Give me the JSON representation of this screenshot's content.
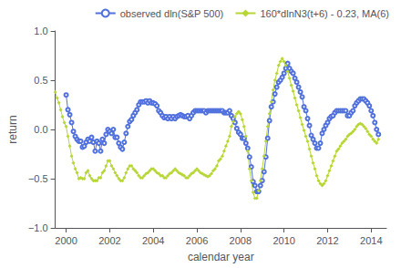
{
  "chart_data": {
    "type": "line",
    "title": "",
    "xlabel": "calendar year",
    "ylabel": "return",
    "xlim": [
      1999.5,
      2014.7
    ],
    "ylim": [
      -1,
      1
    ],
    "xticks": [
      2000,
      2002,
      2004,
      2006,
      2008,
      2010,
      2012,
      2014
    ],
    "yticks": [
      {
        "value": -1,
        "label": "−1.0"
      },
      {
        "value": -0.5,
        "label": "−0.5"
      },
      {
        "value": 0,
        "label": "0.0"
      },
      {
        "value": 0.5,
        "label": "0.5"
      },
      {
        "value": 1,
        "label": "1.0"
      }
    ],
    "grid": false,
    "legend": "upper right",
    "series": [
      {
        "name": "observed dln(S&P 500)",
        "marker": "open circle",
        "x": [
          2000.0,
          2000.083,
          2000.167,
          2000.25,
          2000.333,
          2000.417,
          2000.5,
          2000.583,
          2000.667,
          2000.75,
          2000.833,
          2000.917,
          2001.0,
          2001.083,
          2001.167,
          2001.25,
          2001.333,
          2001.417,
          2001.5,
          2001.583,
          2001.667,
          2001.75,
          2001.833,
          2001.917,
          2002.0,
          2002.083,
          2002.167,
          2002.25,
          2002.333,
          2002.417,
          2002.5,
          2002.583,
          2002.667,
          2002.75,
          2002.833,
          2002.917,
          2003.0,
          2003.083,
          2003.167,
          2003.25,
          2003.333,
          2003.417,
          2003.5,
          2003.583,
          2003.667,
          2003.75,
          2003.833,
          2003.917,
          2004.0,
          2004.083,
          2004.167,
          2004.25,
          2004.333,
          2004.417,
          2004.5,
          2004.583,
          2004.667,
          2004.75,
          2004.833,
          2004.917,
          2005.0,
          2005.083,
          2005.167,
          2005.25,
          2005.333,
          2005.417,
          2005.5,
          2005.583,
          2005.667,
          2005.75,
          2005.833,
          2005.917,
          2006.0,
          2006.083,
          2006.167,
          2006.25,
          2006.333,
          2006.417,
          2006.5,
          2006.583,
          2006.667,
          2006.75,
          2006.833,
          2006.917,
          2007.0,
          2007.083,
          2007.167,
          2007.25,
          2007.333,
          2007.417,
          2007.5,
          2007.583,
          2007.667,
          2007.75,
          2007.833,
          2007.917,
          2008.0,
          2008.083,
          2008.167,
          2008.25,
          2008.333,
          2008.417,
          2008.5,
          2008.583,
          2008.667,
          2008.75,
          2008.833,
          2008.917,
          2009.0,
          2009.083,
          2009.167,
          2009.25,
          2009.333,
          2009.417,
          2009.5,
          2009.583,
          2009.667,
          2009.75,
          2009.833,
          2009.917,
          2010.0,
          2010.083,
          2010.167,
          2010.25,
          2010.333,
          2010.417,
          2010.5,
          2010.583,
          2010.667,
          2010.75,
          2010.833,
          2010.917,
          2011.0,
          2011.083,
          2011.167,
          2011.25,
          2011.333,
          2011.417,
          2011.5,
          2011.583,
          2011.667,
          2011.75,
          2011.833,
          2011.917,
          2012.0,
          2012.083,
          2012.167,
          2012.25,
          2012.333,
          2012.417,
          2012.5,
          2012.583,
          2012.667,
          2012.75,
          2012.833,
          2012.917,
          2013.0,
          2013.083,
          2013.167,
          2013.25,
          2013.333,
          2013.417,
          2013.5,
          2013.583,
          2013.667,
          2013.75,
          2013.833,
          2013.917,
          2014.0,
          2014.083,
          2014.167,
          2014.25,
          2014.333
        ],
        "values": [
          0.35,
          0.2,
          0.15,
          0.07,
          -0.02,
          -0.07,
          -0.1,
          -0.12,
          -0.12,
          -0.18,
          -0.17,
          -0.13,
          -0.1,
          -0.12,
          -0.08,
          -0.13,
          -0.22,
          -0.12,
          -0.14,
          -0.22,
          -0.1,
          -0.14,
          -0.05,
          0.0,
          -0.02,
          -0.04,
          0.0,
          -0.08,
          -0.08,
          -0.14,
          -0.18,
          -0.2,
          -0.13,
          -0.04,
          0.03,
          0.08,
          0.1,
          0.14,
          0.17,
          0.2,
          0.25,
          0.28,
          0.28,
          0.28,
          0.29,
          0.27,
          0.29,
          0.27,
          0.27,
          0.26,
          0.24,
          0.19,
          0.17,
          0.14,
          0.12,
          0.13,
          0.11,
          0.13,
          0.11,
          0.13,
          0.11,
          0.13,
          0.14,
          0.15,
          0.14,
          0.13,
          0.13,
          0.14,
          0.11,
          0.14,
          0.17,
          0.19,
          0.19,
          0.19,
          0.19,
          0.19,
          0.19,
          0.17,
          0.19,
          0.19,
          0.19,
          0.19,
          0.19,
          0.19,
          0.19,
          0.19,
          0.19,
          0.17,
          0.17,
          0.17,
          0.19,
          0.14,
          0.11,
          0.07,
          0.01,
          -0.03,
          -0.05,
          -0.09,
          -0.09,
          -0.14,
          -0.19,
          -0.28,
          -0.38,
          -0.53,
          -0.57,
          -0.63,
          -0.63,
          -0.57,
          -0.52,
          -0.43,
          -0.28,
          -0.09,
          0.09,
          0.23,
          0.28,
          0.36,
          0.43,
          0.48,
          0.5,
          0.53,
          0.57,
          0.62,
          0.67,
          0.62,
          0.59,
          0.57,
          0.52,
          0.48,
          0.43,
          0.38,
          0.33,
          0.23,
          0.19,
          0.11,
          0.04,
          -0.06,
          -0.1,
          -0.14,
          -0.19,
          -0.19,
          -0.14,
          -0.04,
          0.0,
          0.04,
          0.07,
          0.11,
          0.13,
          0.14,
          0.17,
          0.19,
          0.19,
          0.19,
          0.19,
          0.19,
          0.19,
          0.14,
          0.14,
          0.17,
          0.19,
          0.24,
          0.27,
          0.29,
          0.31,
          0.31,
          0.31,
          0.29,
          0.27,
          0.24,
          0.19,
          0.14,
          0.07,
          0.0,
          -0.05
        ]
      },
      {
        "name": "160*dlnN3(t+6) - 0.23, MA(6)",
        "marker": "diamond",
        "x": [
          1999.5,
          1999.583,
          1999.667,
          1999.75,
          1999.833,
          1999.917,
          2000.0,
          2000.083,
          2000.167,
          2000.25,
          2000.333,
          2000.417,
          2000.5,
          2000.583,
          2000.667,
          2000.75,
          2000.833,
          2000.917,
          2001.0,
          2001.083,
          2001.167,
          2001.25,
          2001.333,
          2001.417,
          2001.5,
          2001.583,
          2001.667,
          2001.75,
          2001.833,
          2001.917,
          2002.0,
          2002.083,
          2002.167,
          2002.25,
          2002.333,
          2002.417,
          2002.5,
          2002.583,
          2002.667,
          2002.75,
          2002.833,
          2002.917,
          2003.0,
          2003.083,
          2003.167,
          2003.25,
          2003.333,
          2003.417,
          2003.5,
          2003.583,
          2003.667,
          2003.75,
          2003.833,
          2003.917,
          2004.0,
          2004.083,
          2004.167,
          2004.25,
          2004.333,
          2004.417,
          2004.5,
          2004.583,
          2004.667,
          2004.75,
          2004.833,
          2004.917,
          2005.0,
          2005.083,
          2005.167,
          2005.25,
          2005.333,
          2005.417,
          2005.5,
          2005.583,
          2005.667,
          2005.75,
          2005.833,
          2005.917,
          2006.0,
          2006.083,
          2006.167,
          2006.25,
          2006.333,
          2006.417,
          2006.5,
          2006.583,
          2006.667,
          2006.75,
          2006.833,
          2006.917,
          2007.0,
          2007.083,
          2007.167,
          2007.25,
          2007.333,
          2007.417,
          2007.5,
          2007.583,
          2007.667,
          2007.75,
          2007.833,
          2007.917,
          2008.0,
          2008.083,
          2008.167,
          2008.25,
          2008.333,
          2008.417,
          2008.5,
          2008.583,
          2008.667,
          2008.75,
          2008.833,
          2008.917,
          2009.0,
          2009.083,
          2009.167,
          2009.25,
          2009.333,
          2009.417,
          2009.5,
          2009.583,
          2009.667,
          2009.75,
          2009.833,
          2009.917,
          2010.0,
          2010.083,
          2010.167,
          2010.25,
          2010.333,
          2010.417,
          2010.5,
          2010.583,
          2010.667,
          2010.75,
          2010.833,
          2010.917,
          2011.0,
          2011.083,
          2011.167,
          2011.25,
          2011.333,
          2011.417,
          2011.5,
          2011.583,
          2011.667,
          2011.75,
          2011.833,
          2011.917,
          2012.0,
          2012.083,
          2012.167,
          2012.25,
          2012.333,
          2012.417,
          2012.5,
          2012.583,
          2012.667,
          2012.75,
          2012.833,
          2012.917,
          2013.0,
          2013.083,
          2013.167,
          2013.25,
          2013.333,
          2013.417,
          2013.5,
          2013.583,
          2013.667,
          2013.75,
          2013.833,
          2013.917,
          2014.0,
          2014.083,
          2014.167,
          2014.25,
          2014.333
        ],
        "values": [
          0.38,
          0.32,
          0.27,
          0.2,
          0.13,
          0.07,
          0.03,
          -0.07,
          -0.17,
          -0.27,
          -0.34,
          -0.4,
          -0.44,
          -0.5,
          -0.49,
          -0.5,
          -0.5,
          -0.44,
          -0.42,
          -0.47,
          -0.5,
          -0.52,
          -0.52,
          -0.52,
          -0.49,
          -0.49,
          -0.44,
          -0.42,
          -0.37,
          -0.32,
          -0.32,
          -0.37,
          -0.4,
          -0.44,
          -0.47,
          -0.5,
          -0.52,
          -0.52,
          -0.49,
          -0.44,
          -0.4,
          -0.37,
          -0.37,
          -0.4,
          -0.42,
          -0.44,
          -0.47,
          -0.49,
          -0.49,
          -0.47,
          -0.45,
          -0.44,
          -0.42,
          -0.4,
          -0.4,
          -0.42,
          -0.44,
          -0.45,
          -0.47,
          -0.47,
          -0.49,
          -0.49,
          -0.47,
          -0.45,
          -0.44,
          -0.42,
          -0.4,
          -0.42,
          -0.44,
          -0.45,
          -0.46,
          -0.47,
          -0.49,
          -0.49,
          -0.47,
          -0.45,
          -0.44,
          -0.42,
          -0.4,
          -0.42,
          -0.44,
          -0.45,
          -0.46,
          -0.47,
          -0.48,
          -0.47,
          -0.45,
          -0.42,
          -0.4,
          -0.37,
          -0.32,
          -0.3,
          -0.27,
          -0.22,
          -0.17,
          -0.12,
          -0.07,
          0.03,
          0.08,
          0.13,
          0.16,
          0.18,
          0.16,
          0.1,
          0.03,
          -0.07,
          -0.22,
          -0.4,
          -0.52,
          -0.64,
          -0.7,
          -0.7,
          -0.62,
          -0.52,
          -0.4,
          -0.27,
          -0.12,
          0.03,
          0.16,
          0.28,
          0.4,
          0.5,
          0.57,
          0.65,
          0.69,
          0.72,
          0.69,
          0.65,
          0.59,
          0.52,
          0.45,
          0.39,
          0.32,
          0.25,
          0.19,
          0.12,
          0.05,
          -0.01,
          -0.07,
          -0.12,
          -0.2,
          -0.27,
          -0.34,
          -0.4,
          -0.47,
          -0.52,
          -0.55,
          -0.57,
          -0.55,
          -0.52,
          -0.47,
          -0.42,
          -0.37,
          -0.32,
          -0.27,
          -0.22,
          -0.2,
          -0.17,
          -0.14,
          -0.12,
          -0.1,
          -0.07,
          -0.05,
          -0.04,
          -0.02,
          0.0,
          0.03,
          0.05,
          0.06,
          0.05,
          0.03,
          0.01,
          -0.02,
          -0.05,
          -0.07,
          -0.1,
          -0.12,
          -0.14,
          -0.1
        ]
      }
    ]
  }
}
